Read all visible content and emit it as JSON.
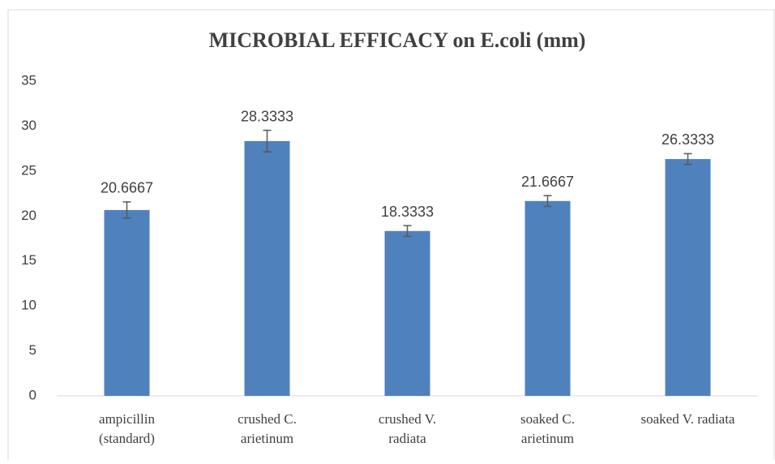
{
  "chart_data": {
    "type": "bar",
    "title": "MICROBIAL EFFICACY on E.coli (mm)",
    "categories": [
      [
        "ampicillin",
        "(standard)"
      ],
      [
        "crushed C.",
        "arietinum"
      ],
      [
        "crushed V.",
        "radiata"
      ],
      [
        "soaked C.",
        "arietinum"
      ],
      [
        "soaked V. radiata"
      ]
    ],
    "values": [
      20.6667,
      28.3333,
      18.3333,
      21.6667,
      26.3333
    ],
    "errors": [
      0.9,
      1.2,
      0.6,
      0.6,
      0.6
    ],
    "color": "#4f81bd",
    "ylim": [
      0,
      35
    ],
    "yticks": [
      0,
      5,
      10,
      15,
      20,
      25,
      30,
      35
    ],
    "grid": false
  }
}
